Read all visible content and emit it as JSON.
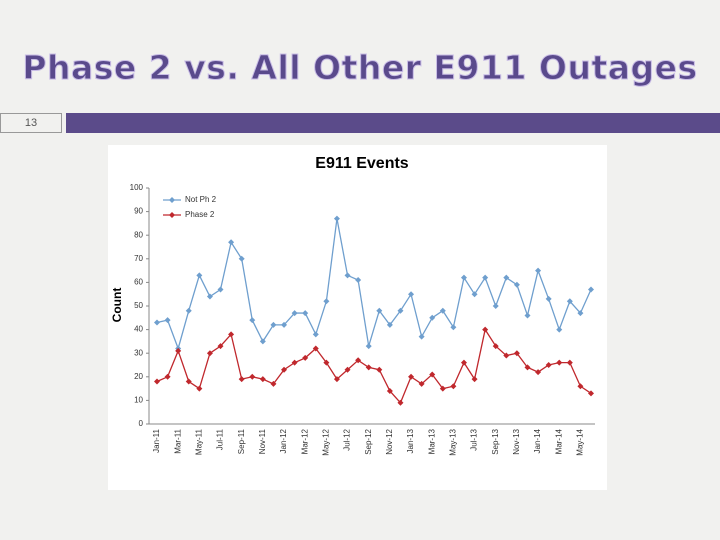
{
  "slide": {
    "title": "Phase 2 vs. All Other E911 Outages",
    "number": "13"
  },
  "chart_data": {
    "type": "line",
    "title": "E911 Events",
    "y_label": "Count",
    "categories": [
      "Jan-11",
      null,
      "Mar-11",
      null,
      "May-11",
      null,
      "Jul-11",
      null,
      "Sep-11",
      null,
      "Nov-11",
      null,
      "Jan-12",
      null,
      "Mar-12",
      null,
      "May-12",
      null,
      "Jul-12",
      null,
      "Sep-12",
      null,
      "Nov-12",
      null,
      "Jan-13",
      null,
      "Mar-13",
      null,
      "May-13",
      null,
      "Jul-13",
      null,
      "Sep-13",
      null,
      "Nov-13",
      null,
      "Jan-14",
      null,
      "Mar-14",
      null,
      "May-14",
      null
    ],
    "series": [
      {
        "name": "Not Ph 2",
        "color": "#6f9fce",
        "values": [
          43,
          44,
          32,
          48,
          63,
          54,
          57,
          77,
          70,
          44,
          35,
          42,
          42,
          47,
          47,
          38,
          52,
          87,
          63,
          61,
          33,
          48,
          42,
          48,
          55,
          37,
          45,
          48,
          41,
          62,
          55,
          62,
          50,
          62,
          59,
          46,
          65,
          53,
          40,
          52,
          47,
          57
        ]
      },
      {
        "name": "Phase 2",
        "color": "#c0282d",
        "values": [
          18,
          20,
          31,
          18,
          15,
          30,
          33,
          38,
          19,
          20,
          19,
          17,
          23,
          26,
          28,
          32,
          26,
          19,
          23,
          27,
          24,
          23,
          14,
          9,
          20,
          17,
          21,
          15,
          16,
          26,
          19,
          40,
          33,
          29,
          30,
          24,
          22,
          25,
          26,
          26,
          16,
          13
        ]
      }
    ],
    "ylim": [
      0,
      100
    ],
    "yticks": [
      0,
      10,
      20,
      30,
      40,
      50,
      60,
      70,
      80,
      90,
      100
    ],
    "grid": false,
    "legend": "top-left"
  }
}
